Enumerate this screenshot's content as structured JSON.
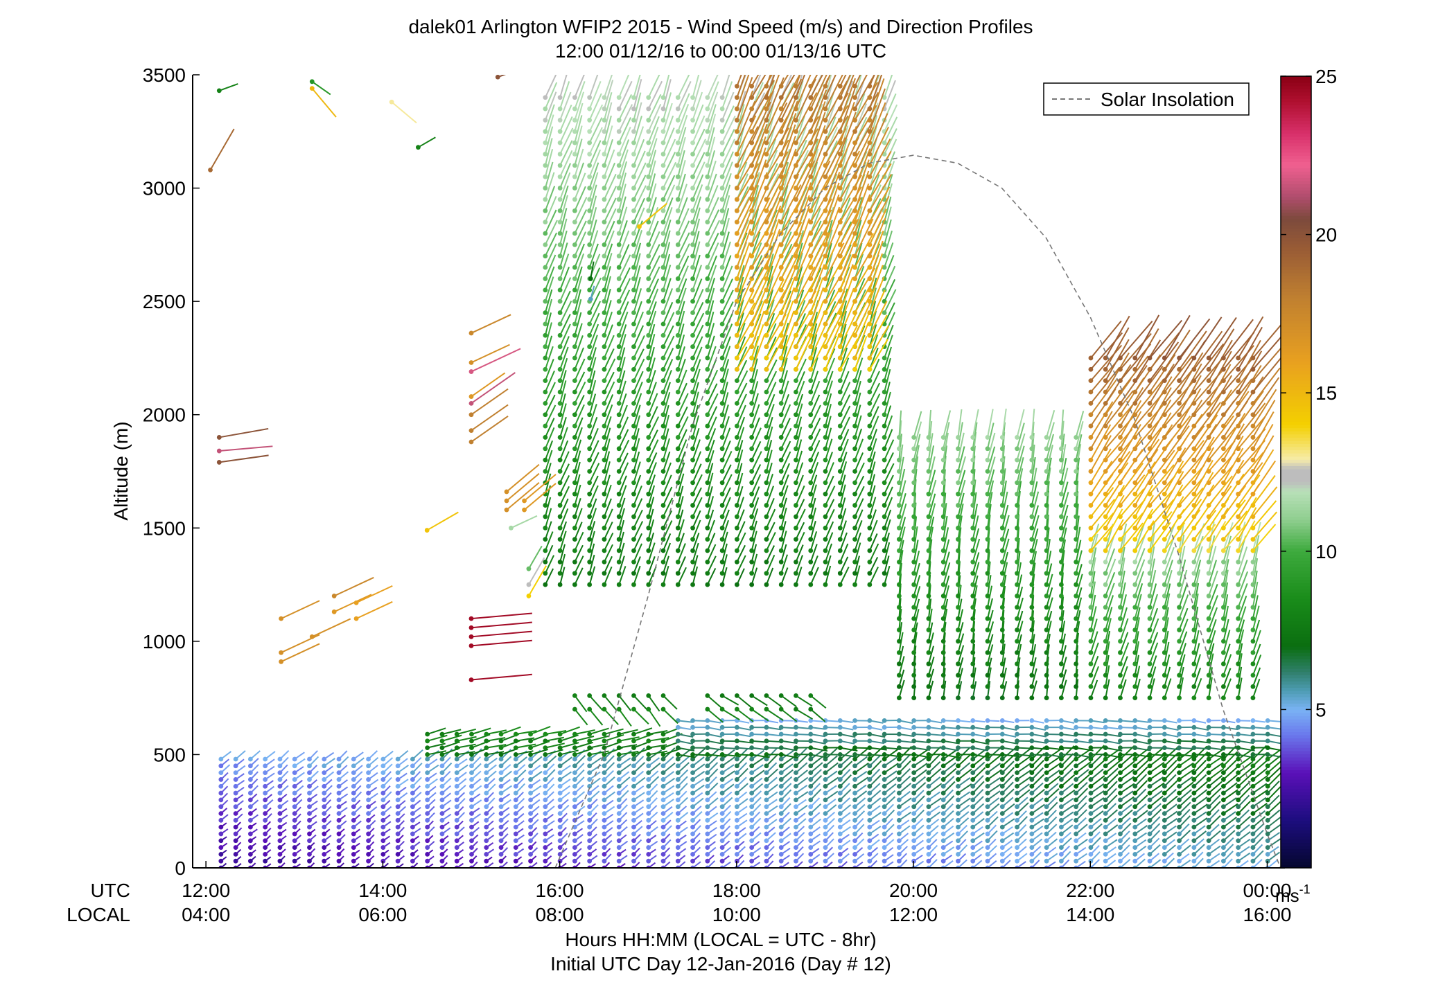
{
  "chart_data": {
    "type": "wind-profile",
    "title": "dalek01 Arlington WFIP2 2015 - Wind Speed (m/s) and Direction Profiles",
    "subtitle": "12:00 01/12/16 to 00:00 01/13/16  UTC",
    "ylabel": "Altitude (m)",
    "xlabel": "Hours HH:MM  (LOCAL = UTC - 8hr)",
    "xlabel2": "Initial UTC Day 12-Jan-2016 (Day # 12)",
    "row_labels": {
      "utc": "UTC",
      "local": "LOCAL"
    },
    "xlim": [
      11.85,
      24.2
    ],
    "ylim": [
      0,
      3500
    ],
    "y_ticks": [
      0,
      500,
      1000,
      1500,
      2000,
      2500,
      3000,
      3500
    ],
    "x_ticks": [
      {
        "x": 12,
        "utc": "12:00",
        "local": "04:00"
      },
      {
        "x": 14,
        "utc": "14:00",
        "local": "06:00"
      },
      {
        "x": 16,
        "utc": "16:00",
        "local": "08:00"
      },
      {
        "x": 18,
        "utc": "18:00",
        "local": "10:00"
      },
      {
        "x": 20,
        "utc": "20:00",
        "local": "12:00"
      },
      {
        "x": 22,
        "utc": "22:00",
        "local": "14:00"
      },
      {
        "x": 24,
        "utc": "00:00",
        "local": "16:00"
      }
    ],
    "legend": {
      "label": "Solar Insolation",
      "position": "top-right",
      "color": "#777777",
      "style": "dashed"
    },
    "solar_insolation": {
      "x": [
        15.95,
        16.5,
        17.0,
        17.5,
        18.0,
        18.5,
        19.0,
        19.5,
        20.0,
        20.5,
        21.0,
        21.5,
        22.0,
        22.5,
        23.0,
        23.5,
        24.0,
        24.15
      ],
      "y": [
        0,
        500,
        1200,
        1950,
        2500,
        2800,
        3000,
        3110,
        3145,
        3110,
        3000,
        2780,
        2430,
        1980,
        1380,
        700,
        150,
        0
      ]
    },
    "colorbar": {
      "label": "ms",
      "label_sup": "-1",
      "range": [
        0,
        25
      ],
      "ticks": [
        5,
        10,
        15,
        20,
        25
      ],
      "stops": [
        {
          "v": 0,
          "c": "#05072e"
        },
        {
          "v": 1.5,
          "c": "#1c0d7e"
        },
        {
          "v": 3,
          "c": "#5a10b8"
        },
        {
          "v": 4.2,
          "c": "#6a78ec"
        },
        {
          "v": 5,
          "c": "#7ab3f4"
        },
        {
          "v": 5.6,
          "c": "#4e9cb4"
        },
        {
          "v": 6.2,
          "c": "#2f7f6a"
        },
        {
          "v": 7,
          "c": "#0a6e10"
        },
        {
          "v": 8.5,
          "c": "#1a8c1a"
        },
        {
          "v": 10,
          "c": "#3daa3d"
        },
        {
          "v": 11,
          "c": "#8fce8f"
        },
        {
          "v": 11.9,
          "c": "#b8e0b8"
        },
        {
          "v": 12.2,
          "c": "#bdbdbd"
        },
        {
          "v": 12.6,
          "c": "#bdbdbd"
        },
        {
          "v": 12.9,
          "c": "#f6ecaa"
        },
        {
          "v": 14,
          "c": "#f4d000"
        },
        {
          "v": 16,
          "c": "#e8a020"
        },
        {
          "v": 18,
          "c": "#c08030"
        },
        {
          "v": 19.5,
          "c": "#9a5d35"
        },
        {
          "v": 20.5,
          "c": "#7d4a3c"
        },
        {
          "v": 21.2,
          "c": "#b04d6d"
        },
        {
          "v": 22.2,
          "c": "#f06090"
        },
        {
          "v": 23.2,
          "c": "#d8306a"
        },
        {
          "v": 24.2,
          "c": "#b01030"
        },
        {
          "v": 25,
          "c": "#8a0014"
        }
      ]
    },
    "profile_columns": {
      "x_start": 12.17,
      "x_step": 0.1667,
      "count": 72,
      "layers": [
        {
          "from": 12.17,
          "to": 24.17,
          "z0": 0,
          "z1": 500,
          "dz": 30,
          "spd0": 2.2,
          "spd1": 4.8,
          "dir": 230,
          "speed_growth": 0.045
        },
        {
          "from": 14.4,
          "to": 17.2,
          "z0": 500,
          "z1": 600,
          "dz": 30,
          "spd0": 7.5,
          "spd1": 8.2,
          "dir": 255,
          "speed_growth": 0
        },
        {
          "from": 17.2,
          "to": 24.17,
          "z0": 500,
          "z1": 650,
          "dz": 30,
          "spd0": 7.0,
          "spd1": 5.2,
          "dir": 275,
          "speed_growth": 0
        },
        {
          "from": 16.15,
          "to": 17.3,
          "z0": 700,
          "z1": 800,
          "dz": 60,
          "spd0": 8.0,
          "spd1": 8.0,
          "dir": 320,
          "speed_growth": 0
        },
        {
          "from": 17.6,
          "to": 19.0,
          "z0": 700,
          "z1": 760,
          "dz": 60,
          "spd0": 7.8,
          "spd1": 7.8,
          "dir": 305,
          "speed_growth": 0
        },
        {
          "from": 15.7,
          "to": 19.7,
          "z0": 1250,
          "z1": 3400,
          "dz": 50,
          "spd0": 7.5,
          "spd1": 12.0,
          "dir": 200,
          "speed_growth": 0
        },
        {
          "from": 18.0,
          "to": 19.6,
          "z0": 2200,
          "z1": 3450,
          "dz": 50,
          "spd0": 14.5,
          "spd1": 18.5,
          "dir": 205,
          "speed_growth": 0
        },
        {
          "from": 19.7,
          "to": 21.9,
          "z0": 750,
          "z1": 1900,
          "dz": 50,
          "spd0": 7.2,
          "spd1": 11.2,
          "dir": 190,
          "speed_growth": 0
        },
        {
          "from": 21.9,
          "to": 24.0,
          "z0": 750,
          "z1": 1400,
          "dz": 50,
          "spd0": 8.0,
          "spd1": 11.5,
          "dir": 195,
          "speed_growth": 0
        },
        {
          "from": 21.9,
          "to": 24.0,
          "z0": 1400,
          "z1": 2250,
          "dz": 50,
          "spd0": 14.0,
          "spd1": 19.5,
          "dir": 215,
          "speed_growth": 0
        }
      ],
      "scattered": [
        {
          "x": 12.15,
          "z": 3430,
          "spd": 8,
          "dir": 250
        },
        {
          "x": 12.05,
          "z": 3080,
          "spd": 19,
          "dir": 210
        },
        {
          "x": 12.15,
          "z": 1900,
          "spd": 20,
          "dir": 260
        },
        {
          "x": 12.15,
          "z": 1840,
          "spd": 21.5,
          "dir": 265
        },
        {
          "x": 12.15,
          "z": 1790,
          "spd": 20,
          "dir": 262
        },
        {
          "x": 12.85,
          "z": 1100,
          "spd": 17,
          "dir": 245
        },
        {
          "x": 12.85,
          "z": 950,
          "spd": 17,
          "dir": 245
        },
        {
          "x": 12.85,
          "z": 910,
          "spd": 17,
          "dir": 245
        },
        {
          "x": 13.2,
          "z": 1020,
          "spd": 17,
          "dir": 245
        },
        {
          "x": 13.45,
          "z": 1200,
          "spd": 17.5,
          "dir": 245
        },
        {
          "x": 13.45,
          "z": 1130,
          "spd": 16.5,
          "dir": 245
        },
        {
          "x": 13.7,
          "z": 1170,
          "spd": 16,
          "dir": 245
        },
        {
          "x": 13.7,
          "z": 1100,
          "spd": 16,
          "dir": 245
        },
        {
          "x": 13.2,
          "z": 3440,
          "spd": 15,
          "dir": 320
        },
        {
          "x": 13.2,
          "z": 3470,
          "spd": 9,
          "dir": 305
        },
        {
          "x": 14.1,
          "z": 3380,
          "spd": 13,
          "dir": 310
        },
        {
          "x": 14.4,
          "z": 3180,
          "spd": 8,
          "dir": 240
        },
        {
          "x": 14.5,
          "z": 1490,
          "spd": 14.5,
          "dir": 240
        },
        {
          "x": 15.0,
          "z": 2360,
          "spd": 17.5,
          "dir": 245
        },
        {
          "x": 15.0,
          "z": 2230,
          "spd": 17,
          "dir": 245
        },
        {
          "x": 15.0,
          "z": 2190,
          "spd": 21.8,
          "dir": 245
        },
        {
          "x": 15.0,
          "z": 2080,
          "spd": 16.5,
          "dir": 235
        },
        {
          "x": 15.0,
          "z": 2050,
          "spd": 21.5,
          "dir": 235
        },
        {
          "x": 15.0,
          "z": 2000,
          "spd": 18,
          "dir": 235
        },
        {
          "x": 15.0,
          "z": 1930,
          "spd": 18,
          "dir": 235
        },
        {
          "x": 15.0,
          "z": 1880,
          "spd": 18,
          "dir": 235
        },
        {
          "x": 15.0,
          "z": 1100,
          "spd": 24.5,
          "dir": 265
        },
        {
          "x": 15.0,
          "z": 1060,
          "spd": 24.5,
          "dir": 265
        },
        {
          "x": 15.0,
          "z": 1020,
          "spd": 24.5,
          "dir": 265
        },
        {
          "x": 15.0,
          "z": 980,
          "spd": 24.5,
          "dir": 265
        },
        {
          "x": 15.0,
          "z": 830,
          "spd": 24.5,
          "dir": 265
        },
        {
          "x": 15.4,
          "z": 1660,
          "spd": 17,
          "dir": 230
        },
        {
          "x": 15.4,
          "z": 1620,
          "spd": 17,
          "dir": 230
        },
        {
          "x": 15.4,
          "z": 1580,
          "spd": 17,
          "dir": 230
        },
        {
          "x": 15.6,
          "z": 1620,
          "spd": 16.5,
          "dir": 230
        },
        {
          "x": 15.6,
          "z": 1580,
          "spd": 16.5,
          "dir": 230
        },
        {
          "x": 15.45,
          "z": 1500,
          "spd": 11.5,
          "dir": 245
        },
        {
          "x": 15.65,
          "z": 1320,
          "spd": 10.5,
          "dir": 210
        },
        {
          "x": 15.65,
          "z": 1250,
          "spd": 12.5,
          "dir": 210
        },
        {
          "x": 15.65,
          "z": 1200,
          "spd": 14,
          "dir": 210
        },
        {
          "x": 16.9,
          "z": 2830,
          "spd": 14.5,
          "dir": 230
        },
        {
          "x": 16.35,
          "z": 2600,
          "spd": 7,
          "dir": 190
        },
        {
          "x": 16.35,
          "z": 2510,
          "spd": 5.5,
          "dir": 195
        },
        {
          "x": 15.3,
          "z": 3490,
          "spd": 20,
          "dir": 250
        }
      ]
    }
  }
}
